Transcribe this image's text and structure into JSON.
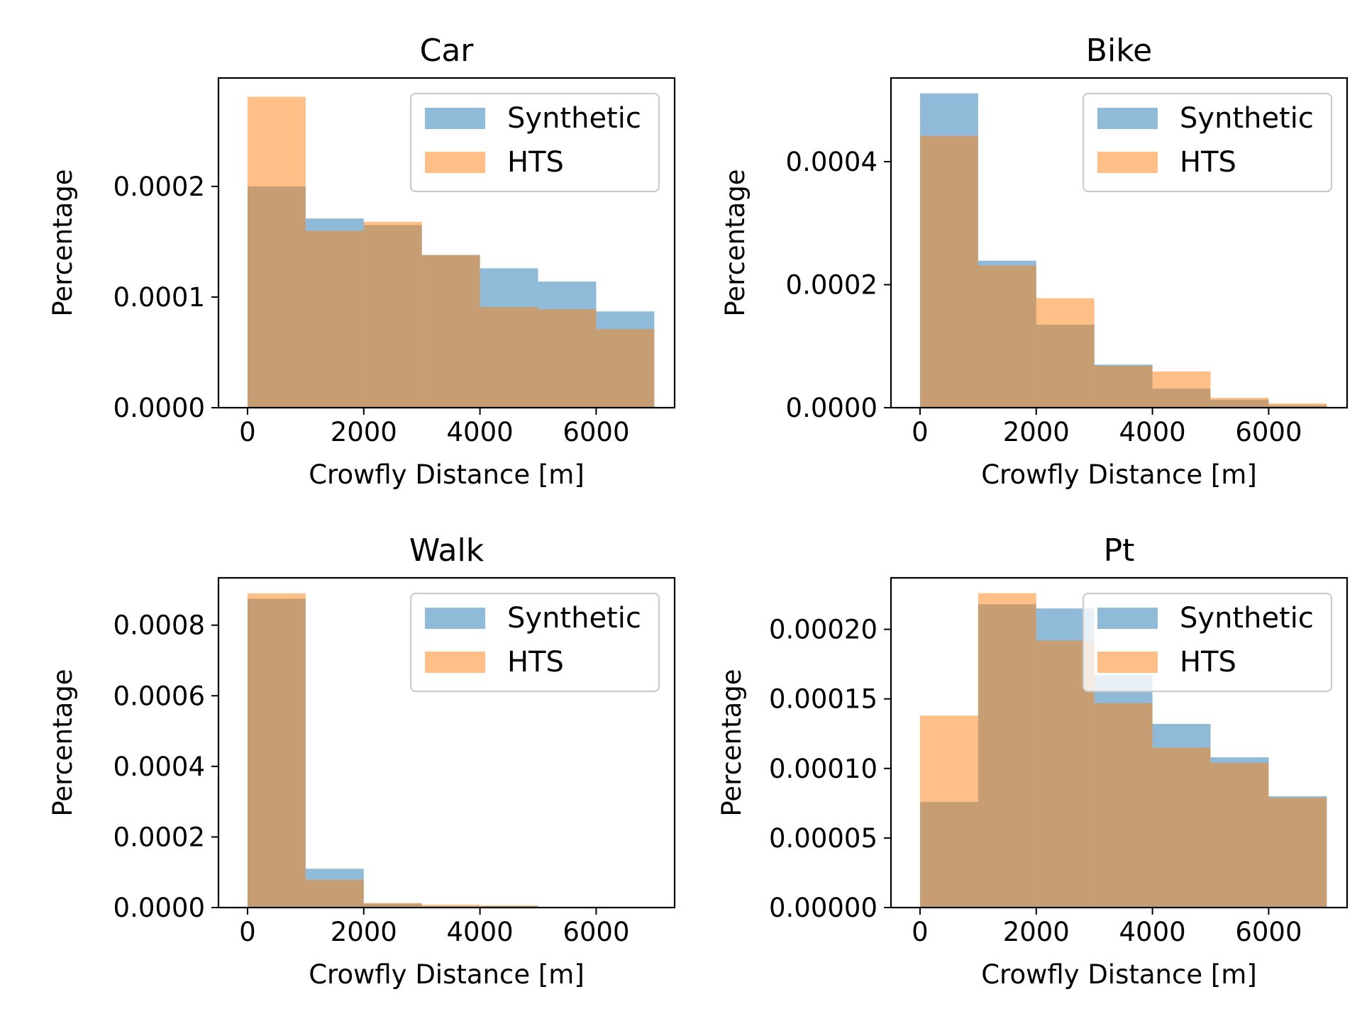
{
  "chart_data": [
    {
      "type": "bar",
      "title": "Car",
      "xlabel": "Crowfly Distance [m]",
      "ylabel": "Percentage",
      "bin_edges": [
        0,
        1000,
        2000,
        3000,
        4000,
        5000,
        6000,
        7000
      ],
      "xlim": [
        -500,
        7350
      ],
      "ylim": [
        0,
        0.000298
      ],
      "xticks": [
        0,
        2000,
        4000,
        6000
      ],
      "xtick_labels": [
        "0",
        "2000",
        "4000",
        "6000"
      ],
      "yticks": [
        0,
        0.0001,
        0.0002
      ],
      "ytick_labels": [
        "0.0000",
        "0.0001",
        "0.0002"
      ],
      "legend_position": "top-right",
      "series": [
        {
          "name": "Synthetic",
          "color": "#1f77b4",
          "values": [
            0.0002,
            0.000171,
            0.000165,
            0.000138,
            0.000126,
            0.000114,
            8.7e-05
          ]
        },
        {
          "name": "HTS",
          "color": "#ff7f0e",
          "values": [
            0.000281,
            0.00016,
            0.000168,
            0.000138,
            9.1e-05,
            8.9e-05,
            7.1e-05
          ]
        }
      ]
    },
    {
      "type": "bar",
      "title": "Bike",
      "xlabel": "Crowfly Distance [m]",
      "ylabel": "Percentage",
      "bin_edges": [
        0,
        1000,
        2000,
        3000,
        4000,
        5000,
        6000,
        7000
      ],
      "xlim": [
        -500,
        7350
      ],
      "ylim": [
        0,
        0.000536
      ],
      "xticks": [
        0,
        2000,
        4000,
        6000
      ],
      "xtick_labels": [
        "0",
        "2000",
        "4000",
        "6000"
      ],
      "yticks": [
        0,
        0.0002,
        0.0004
      ],
      "ytick_labels": [
        "0.0000",
        "0.0002",
        "0.0004"
      ],
      "legend_position": "top-right",
      "series": [
        {
          "name": "Synthetic",
          "color": "#1f77b4",
          "values": [
            0.000511,
            0.000239,
            0.000135,
            7e-05,
            3.1e-05,
            1.3e-05,
            4e-06
          ]
        },
        {
          "name": "HTS",
          "color": "#ff7f0e",
          "values": [
            0.000442,
            0.000231,
            0.000178,
            6.8e-05,
            5.9e-05,
            1.6e-05,
            7e-06
          ]
        }
      ]
    },
    {
      "type": "bar",
      "title": "Walk",
      "xlabel": "Crowfly Distance [m]",
      "ylabel": "Percentage",
      "bin_edges": [
        0,
        1000,
        2000,
        3000,
        4000,
        5000,
        6000,
        7000
      ],
      "xlim": [
        -500,
        7350
      ],
      "ylim": [
        0,
        0.000934
      ],
      "xticks": [
        0,
        2000,
        4000,
        6000
      ],
      "xtick_labels": [
        "0",
        "2000",
        "4000",
        "6000"
      ],
      "yticks": [
        0,
        0.0002,
        0.0004,
        0.0006,
        0.0008
      ],
      "ytick_labels": [
        "0.0000",
        "0.0002",
        "0.0004",
        "0.0006",
        "0.0008"
      ],
      "legend_position": "top-right",
      "series": [
        {
          "name": "Synthetic",
          "color": "#1f77b4",
          "values": [
            0.000875,
            0.00011,
            1.1e-05,
            4e-06,
            4e-06,
            1e-06,
            1e-06
          ]
        },
        {
          "name": "HTS",
          "color": "#ff7f0e",
          "values": [
            0.00089,
            7.9e-05,
            1.3e-05,
            8e-06,
            6e-06,
            1e-06,
            1e-06
          ]
        }
      ]
    },
    {
      "type": "bar",
      "title": "Pt",
      "xlabel": "Crowfly Distance [m]",
      "ylabel": "Percentage",
      "bin_edges": [
        0,
        1000,
        2000,
        3000,
        4000,
        5000,
        6000,
        7000
      ],
      "xlim": [
        -500,
        7350
      ],
      "ylim": [
        0,
        0.000237
      ],
      "xticks": [
        0,
        2000,
        4000,
        6000
      ],
      "xtick_labels": [
        "0",
        "2000",
        "4000",
        "6000"
      ],
      "yticks": [
        0,
        5e-05,
        0.0001,
        0.00015,
        0.0002
      ],
      "ytick_labels": [
        "0.00000",
        "0.00005",
        "0.00010",
        "0.00015",
        "0.00020"
      ],
      "legend_position": "top-right",
      "series": [
        {
          "name": "Synthetic",
          "color": "#1f77b4",
          "values": [
            7.6e-05,
            0.000218,
            0.000215,
            0.000167,
            0.000132,
            0.000108,
            8e-05
          ]
        },
        {
          "name": "HTS",
          "color": "#ff7f0e",
          "values": [
            0.000138,
            0.000226,
            0.000192,
            0.000147,
            0.000115,
            0.000104,
            7.9e-05
          ]
        }
      ]
    }
  ]
}
